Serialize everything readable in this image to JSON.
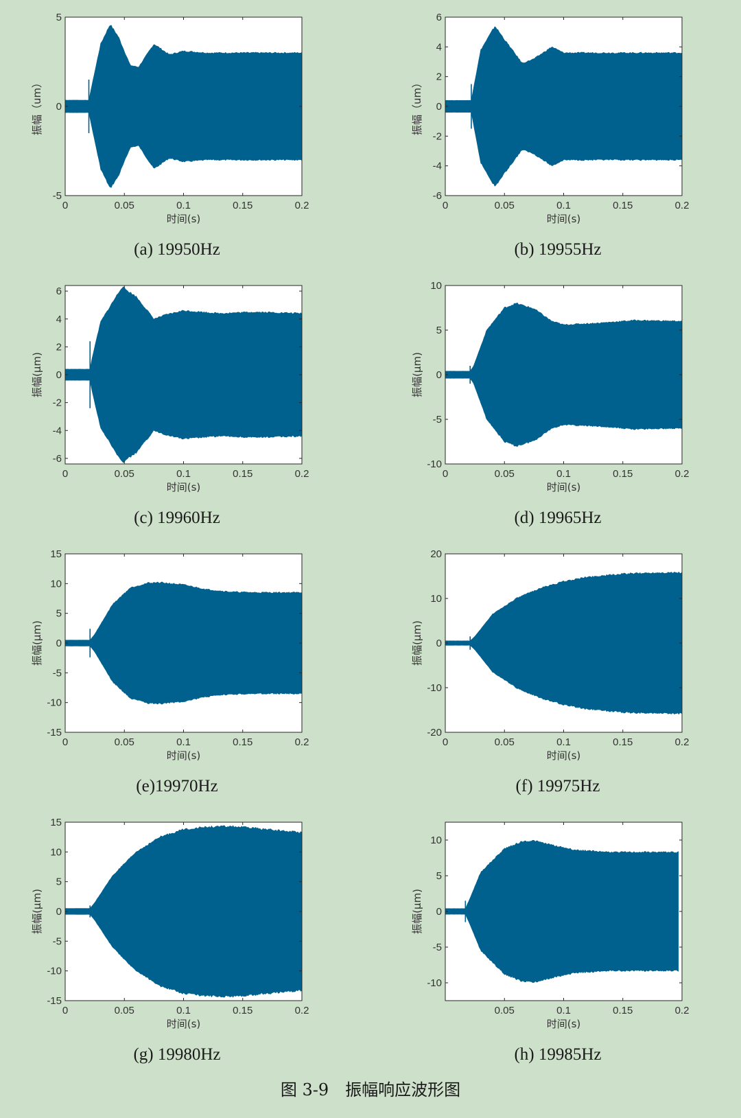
{
  "figure_title": "图 3-9　振幅响应波形图",
  "signal_color": "#00618f",
  "chart_data": [
    {
      "type": "area",
      "caption": "(a) 19950Hz",
      "xlabel": "时间(s)",
      "ylabel": "振幅（um）",
      "xlim": [
        0,
        0.2
      ],
      "ylim": [
        -5,
        5
      ],
      "xticks": [
        0,
        0.05,
        0.1,
        0.15,
        0.2
      ],
      "yticks": [
        -5,
        0,
        5
      ],
      "grid": false,
      "series": [
        {
          "x": [
            0,
            0.02,
            0.022,
            0.03,
            0.038,
            0.045,
            0.055,
            0.062,
            0.075,
            0.088,
            0.1,
            0.12,
            0.15,
            0.2
          ],
          "envelope": [
            0.35,
            0.35,
            1.0,
            3.5,
            4.6,
            3.9,
            2.3,
            2.2,
            3.5,
            2.9,
            3.1,
            3.0,
            3.0,
            3.0
          ]
        }
      ],
      "spike": {
        "x": 0.02,
        "value": 1.5
      }
    },
    {
      "type": "area",
      "caption": "(b) 19955Hz",
      "xlabel": "时间(s)",
      "ylabel": "振幅（um）",
      "xlim": [
        0,
        0.2
      ],
      "ylim": [
        -6,
        6
      ],
      "xticks": [
        0,
        0.05,
        0.1,
        0.15,
        0.2
      ],
      "yticks": [
        -6,
        -4,
        -2,
        0,
        2,
        4,
        6
      ],
      "grid": false,
      "series": [
        {
          "x": [
            0,
            0.022,
            0.024,
            0.03,
            0.042,
            0.05,
            0.065,
            0.075,
            0.09,
            0.1,
            0.13,
            0.16,
            0.2
          ],
          "envelope": [
            0.4,
            0.4,
            1.3,
            3.8,
            5.4,
            4.5,
            2.9,
            3.2,
            4.0,
            3.6,
            3.6,
            3.6,
            3.6
          ]
        }
      ],
      "spike": {
        "x": 0.022,
        "value": 1.5
      }
    },
    {
      "type": "area",
      "caption": "(c) 19960Hz",
      "xlabel": "时间(s)",
      "ylabel": "振幅(μm)",
      "xlim": [
        0,
        0.2
      ],
      "ylim": [
        -6.4,
        6.4
      ],
      "xticks": [
        0,
        0.05,
        0.1,
        0.15,
        0.2
      ],
      "yticks": [
        -6,
        -4,
        -2,
        0,
        2,
        4,
        6
      ],
      "grid": false,
      "series": [
        {
          "x": [
            0,
            0.021,
            0.023,
            0.03,
            0.048,
            0.06,
            0.075,
            0.085,
            0.1,
            0.13,
            0.16,
            0.2
          ],
          "envelope": [
            0.4,
            0.4,
            1.3,
            3.8,
            6.3,
            5.6,
            4.0,
            4.3,
            4.6,
            4.4,
            4.5,
            4.4
          ]
        }
      ],
      "spike": {
        "x": 0.021,
        "value": 2.4
      }
    },
    {
      "type": "area",
      "caption": "(d) 19965Hz",
      "xlabel": "时间(s)",
      "ylabel": "振幅(μm)",
      "xlim": [
        0,
        0.2
      ],
      "ylim": [
        -10,
        10
      ],
      "xticks": [
        0,
        0.05,
        0.1,
        0.15,
        0.2
      ],
      "yticks": [
        -10,
        -5,
        0,
        5,
        10
      ],
      "grid": false,
      "series": [
        {
          "x": [
            0,
            0.021,
            0.024,
            0.035,
            0.05,
            0.06,
            0.075,
            0.09,
            0.1,
            0.13,
            0.16,
            0.2
          ],
          "envelope": [
            0.4,
            0.4,
            1.0,
            5.0,
            7.5,
            8.0,
            7.4,
            6.0,
            5.6,
            5.8,
            6.1,
            6.0
          ]
        }
      ],
      "spike": {
        "x": 0.021,
        "value": 1.0
      }
    },
    {
      "type": "area",
      "caption": "(e)19970Hz",
      "xlabel": "时间(s)",
      "ylabel": "振幅(μm)",
      "xlim": [
        0,
        0.2
      ],
      "ylim": [
        -15,
        15
      ],
      "xticks": [
        0,
        0.05,
        0.1,
        0.15,
        0.2
      ],
      "yticks": [
        -15,
        -10,
        -5,
        0,
        5,
        10,
        15
      ],
      "grid": false,
      "series": [
        {
          "x": [
            0,
            0.021,
            0.025,
            0.04,
            0.055,
            0.07,
            0.08,
            0.1,
            0.12,
            0.14,
            0.16,
            0.2
          ],
          "envelope": [
            0.5,
            0.5,
            1.5,
            6.5,
            9.3,
            10.1,
            10.2,
            9.8,
            9.0,
            8.6,
            8.5,
            8.5
          ]
        }
      ],
      "spike": {
        "x": 0.021,
        "value": 2.4
      }
    },
    {
      "type": "area",
      "caption": "(f) 19975Hz",
      "xlabel": "时间(s)",
      "ylabel": "振幅(μm)",
      "xlim": [
        0,
        0.2
      ],
      "ylim": [
        -20,
        20
      ],
      "xticks": [
        0,
        0.05,
        0.1,
        0.15,
        0.2
      ],
      "yticks": [
        -20,
        -10,
        0,
        10,
        20
      ],
      "grid": false,
      "series": [
        {
          "x": [
            0,
            0.021,
            0.025,
            0.04,
            0.06,
            0.08,
            0.1,
            0.12,
            0.15,
            0.18,
            0.2
          ],
          "envelope": [
            0.5,
            0.5,
            1.5,
            6.5,
            10.0,
            12.3,
            13.8,
            14.8,
            15.5,
            15.8,
            15.8
          ]
        }
      ],
      "spike": {
        "x": 0.021,
        "value": 1.5
      }
    },
    {
      "type": "area",
      "caption": "(g) 19980Hz",
      "xlabel": "时间(s)",
      "ylabel": "振幅(μm)",
      "xlim": [
        0,
        0.2
      ],
      "ylim": [
        -15,
        15
      ],
      "xticks": [
        0,
        0.05,
        0.1,
        0.15,
        0.2
      ],
      "yticks": [
        -15,
        -10,
        -5,
        0,
        5,
        10,
        15
      ],
      "grid": false,
      "series": [
        {
          "x": [
            0,
            0.021,
            0.025,
            0.04,
            0.06,
            0.08,
            0.1,
            0.12,
            0.14,
            0.16,
            0.18,
            0.2
          ],
          "envelope": [
            0.5,
            0.5,
            1.5,
            6.0,
            10.0,
            12.5,
            13.8,
            14.2,
            14.3,
            14.0,
            13.6,
            13.3
          ]
        }
      ],
      "spike": {
        "x": 0.021,
        "value": 1.0
      }
    },
    {
      "type": "area",
      "caption": "(h) 19985Hz",
      "xlabel": "时间(s)",
      "ylabel": "振幅(μm)",
      "xlim": [
        0,
        0.2
      ],
      "ylim": [
        -12.5,
        12.5
      ],
      "xticks": [
        0.05,
        0.1,
        0.15,
        0.2
      ],
      "yticks": [
        -10,
        -5,
        0,
        5,
        10
      ],
      "grid": false,
      "series": [
        {
          "x": [
            0,
            0.017,
            0.02,
            0.03,
            0.05,
            0.065,
            0.075,
            0.09,
            0.11,
            0.14,
            0.17,
            0.197
          ],
          "envelope": [
            0.4,
            0.4,
            1.5,
            5.5,
            8.8,
            9.8,
            9.9,
            9.3,
            8.6,
            8.3,
            8.3,
            8.3
          ]
        }
      ],
      "spike": {
        "x": 0.017,
        "value": 1.5
      }
    }
  ]
}
